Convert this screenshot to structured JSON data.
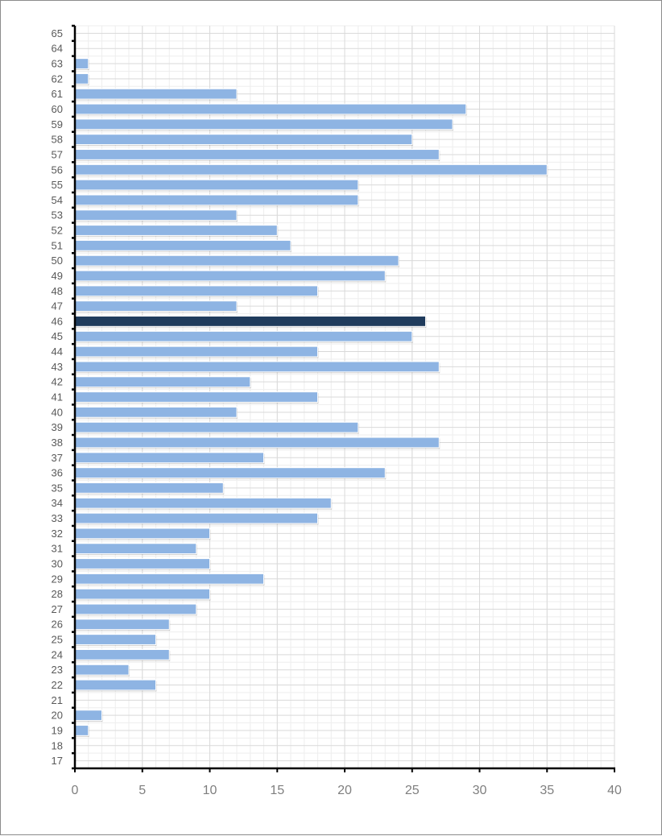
{
  "chart_data": {
    "type": "bar",
    "orientation": "horizontal",
    "title": "",
    "xlabel": "",
    "ylabel": "",
    "xlim": [
      0,
      40
    ],
    "x_ticks": [
      0,
      5,
      10,
      15,
      20,
      25,
      30,
      35,
      40
    ],
    "grid": true,
    "categories": [
      "17",
      "18",
      "19",
      "20",
      "21",
      "22",
      "23",
      "24",
      "25",
      "26",
      "27",
      "28",
      "29",
      "30",
      "31",
      "32",
      "33",
      "34",
      "35",
      "36",
      "37",
      "38",
      "39",
      "40",
      "41",
      "42",
      "43",
      "44",
      "45",
      "46",
      "47",
      "48",
      "49",
      "50",
      "51",
      "52",
      "53",
      "54",
      "55",
      "56",
      "57",
      "58",
      "59",
      "60",
      "61",
      "62",
      "63",
      "64",
      "65"
    ],
    "values": [
      0,
      0,
      1,
      2,
      0,
      6,
      4,
      7,
      6,
      7,
      9,
      10,
      14,
      10,
      9,
      10,
      18,
      19,
      11,
      23,
      14,
      27,
      21,
      12,
      18,
      13,
      27,
      18,
      25,
      26,
      12,
      18,
      23,
      24,
      16,
      15,
      12,
      21,
      21,
      35,
      27,
      25,
      28,
      29,
      12,
      1,
      1,
      0,
      0
    ],
    "highlight_category": "46",
    "colors": {
      "bar": "#8eb4e3",
      "highlight": "#1f3b5c",
      "bar_edge": "#ffffff",
      "grid_major": "#d9d9d9",
      "grid_minor": "#eeeeee",
      "axis": "#000000"
    }
  }
}
